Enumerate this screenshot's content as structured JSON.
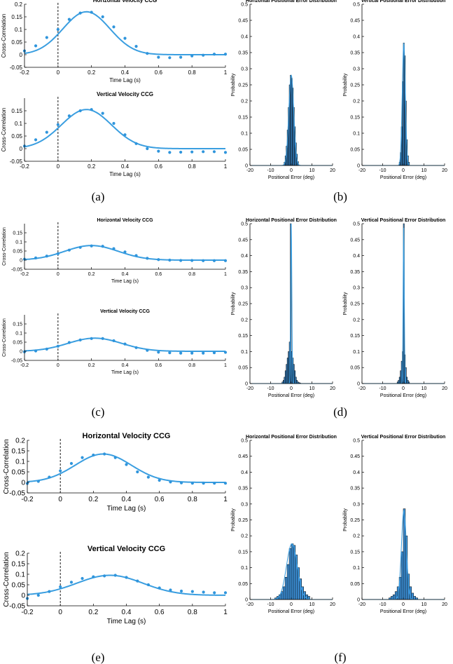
{
  "colors": {
    "fit": "#3a9ee0",
    "dots": "#2f95dc",
    "bar_fill": "#3c8fd6",
    "bar_edge": "#000000",
    "axis": "#000000"
  },
  "panel_labels": [
    "(a)",
    "(b)",
    "(c)",
    "(d)",
    "(e)",
    "(f)"
  ],
  "chart_data": [
    {
      "id": "a_h",
      "type": "line+scatter",
      "title": "Horizontal Velocity CCG",
      "xlabel": "Time Lag (s)",
      "ylabel": "Cross-Correlation",
      "xlim": [
        -0.2,
        1
      ],
      "ylim": [
        -0.05,
        0.2
      ],
      "xticks": [
        "-0.2",
        "0",
        "0.2",
        "0.4",
        "0.6",
        "0.8",
        "1"
      ],
      "yticks": [
        "-0.05",
        "0",
        "0.05",
        "0.1",
        "0.15",
        "0.2"
      ],
      "fit": {
        "amplitude": 0.17,
        "center": 0.17,
        "sigma": 0.14,
        "offset": 0.0
      },
      "points": {
        "x": [
          -0.2,
          -0.133,
          -0.067,
          0,
          0.067,
          0.133,
          0.2,
          0.267,
          0.333,
          0.4,
          0.467,
          0.533,
          0.6,
          0.667,
          0.733,
          0.8,
          0.867,
          0.933,
          1.0
        ],
        "y": [
          0.015,
          0.035,
          0.068,
          0.1,
          0.14,
          0.165,
          0.168,
          0.15,
          0.11,
          0.065,
          0.033,
          0.005,
          -0.01,
          -0.012,
          -0.01,
          -0.005,
          -0.002,
          0.002,
          0.002
        ]
      }
    },
    {
      "id": "a_v",
      "type": "line+scatter",
      "title": "Vertical Velocity CCG",
      "xlabel": "Time Lag (s)",
      "ylabel": "Cross-Correlation",
      "xlim": [
        -0.2,
        1
      ],
      "ylim": [
        -0.05,
        0.2
      ],
      "xticks": [
        "-0.2",
        "0",
        "0.2",
        "0.4",
        "0.6",
        "0.8",
        "1"
      ],
      "yticks": [
        "-0.05",
        "0",
        "0.05",
        "0.1",
        "0.15"
      ],
      "fit": {
        "amplitude": 0.155,
        "center": 0.17,
        "sigma": 0.15,
        "offset": 0.0
      },
      "points": {
        "x": [
          -0.2,
          -0.133,
          -0.067,
          0,
          0.067,
          0.133,
          0.2,
          0.267,
          0.333,
          0.4,
          0.467,
          0.533,
          0.6,
          0.667,
          0.733,
          0.8,
          0.867,
          0.933,
          1.0
        ],
        "y": [
          0.01,
          0.035,
          0.065,
          0.095,
          0.13,
          0.15,
          0.155,
          0.14,
          0.1,
          0.055,
          0.02,
          0.0,
          -0.01,
          -0.015,
          -0.014,
          -0.013,
          -0.012,
          -0.012,
          -0.015
        ]
      }
    },
    {
      "id": "b_h",
      "type": "histogram",
      "title": "Horizontal Positional Error Distribution",
      "xlabel": "Positional Error (deg)",
      "ylabel": "Probability",
      "xlim": [
        -20,
        20
      ],
      "ylim": [
        0,
        0.5
      ],
      "xticks": [
        "-20",
        "-10",
        "0",
        "10",
        "20"
      ],
      "yticks": [
        "0",
        "0.05",
        "0.1",
        "0.15",
        "0.2",
        "0.25",
        "0.3",
        "0.35",
        "0.4",
        "0.45",
        "0.5"
      ],
      "bins": {
        "start": -3.5,
        "width": 0.5,
        "values": [
          0.01,
          0.03,
          0.06,
          0.11,
          0.18,
          0.25,
          0.28,
          0.27,
          0.24,
          0.18,
          0.12,
          0.07,
          0.035,
          0.012
        ]
      },
      "fit": {
        "amplitude": 0.28,
        "center": 0.0,
        "sigma": 1.2
      }
    },
    {
      "id": "b_v",
      "type": "histogram",
      "title": "Vertical Positional Error Distribution",
      "xlabel": "Positional Error (deg)",
      "ylabel": "Probability",
      "xlim": [
        -20,
        20
      ],
      "ylim": [
        0,
        0.5
      ],
      "xticks": [
        "-20",
        "-10",
        "0",
        "10",
        "20"
      ],
      "yticks": [
        "0",
        "0.05",
        "0.1",
        "0.15",
        "0.2",
        "0.25",
        "0.3",
        "0.35",
        "0.4",
        "0.45",
        "0.5"
      ],
      "bins": {
        "start": -2.0,
        "width": 0.5,
        "values": [
          0.01,
          0.04,
          0.12,
          0.26,
          0.38,
          0.34,
          0.2,
          0.08,
          0.03,
          0.01
        ]
      },
      "fit": {
        "amplitude": 0.38,
        "center": 0.25,
        "sigma": 0.75
      }
    },
    {
      "id": "c_h",
      "type": "line+scatter",
      "title": "Horizontal Velocity CCG",
      "xlabel": "Time Lag (s)",
      "ylabel": "Cross-Correlation",
      "xlim": [
        -0.2,
        1
      ],
      "ylim": [
        -0.05,
        0.2
      ],
      "xticks": [
        "-0.2",
        "0",
        "0.2",
        "0.4",
        "0.6",
        "0.8",
        "1"
      ],
      "yticks": [
        "-0.05",
        "0",
        "0.05",
        "0.1",
        "0.15"
      ],
      "fit": {
        "amplitude": 0.08,
        "center": 0.2,
        "sigma": 0.16,
        "offset": 0.0
      },
      "points": {
        "x": [
          -0.2,
          -0.133,
          -0.067,
          0,
          0.067,
          0.133,
          0.2,
          0.267,
          0.333,
          0.4,
          0.467,
          0.533,
          0.6,
          0.667,
          0.733,
          0.8,
          0.867,
          0.933,
          1.0
        ],
        "y": [
          0.005,
          0.012,
          0.022,
          0.035,
          0.055,
          0.07,
          0.078,
          0.076,
          0.063,
          0.045,
          0.025,
          0.01,
          0.003,
          0.0,
          -0.002,
          -0.002,
          -0.003,
          -0.003,
          -0.003
        ]
      }
    },
    {
      "id": "c_v",
      "type": "line+scatter",
      "title": "Vertical Velocity CCG",
      "xlabel": "Time Lag (s)",
      "ylabel": "Cross-Correlation",
      "xlim": [
        -0.2,
        1
      ],
      "ylim": [
        -0.05,
        0.2
      ],
      "xticks": [
        "-0.2",
        "0",
        "0.2",
        "0.4",
        "0.6",
        "0.8",
        "1"
      ],
      "yticks": [
        "-0.05",
        "0",
        "0.05",
        "0.1",
        "0.15"
      ],
      "fit": {
        "amplitude": 0.072,
        "center": 0.22,
        "sigma": 0.16,
        "offset": 0.0
      },
      "points": {
        "x": [
          -0.2,
          -0.133,
          -0.067,
          0,
          0.067,
          0.133,
          0.2,
          0.267,
          0.333,
          0.4,
          0.467,
          0.533,
          0.6,
          0.667,
          0.733,
          0.8,
          0.867,
          0.933,
          1.0
        ],
        "y": [
          -0.003,
          0.002,
          0.012,
          0.028,
          0.048,
          0.062,
          0.07,
          0.07,
          0.058,
          0.04,
          0.02,
          0.005,
          -0.005,
          -0.008,
          -0.01,
          -0.01,
          -0.01,
          -0.008,
          -0.006
        ]
      }
    },
    {
      "id": "d_h",
      "type": "histogram",
      "title": "Horizontal Positional Error Distribution",
      "xlabel": "Positional Error (deg)",
      "ylabel": "Probability",
      "xlim": [
        -20,
        20
      ],
      "ylim": [
        0,
        0.5
      ],
      "xticks": [
        "-20",
        "-10",
        "0",
        "10",
        "20"
      ],
      "yticks": [
        "0",
        "0.05",
        "0.1",
        "0.15",
        "0.2",
        "0.25",
        "0.3",
        "0.35",
        "0.4",
        "0.45",
        "0.5"
      ],
      "bins": {
        "start": -4.5,
        "width": 0.5,
        "values": [
          0.005,
          0.01,
          0.02,
          0.04,
          0.06,
          0.08,
          0.1,
          0.13,
          0.5,
          0.1,
          0.08,
          0.06,
          0.04,
          0.02,
          0.01,
          0.005,
          0.003,
          0.002
        ]
      },
      "fit": {
        "amplitude": 0.5,
        "center": 0.0,
        "sigma": 0.28
      }
    },
    {
      "id": "d_v",
      "type": "histogram",
      "title": "Vertical Positional Error Distribution",
      "xlabel": "Positional Error (deg)",
      "ylabel": "Probability",
      "xlim": [
        -20,
        20
      ],
      "ylim": [
        0,
        0.5
      ],
      "xticks": [
        "-20",
        "-10",
        "0",
        "10",
        "20"
      ],
      "yticks": [
        "0",
        "0.05",
        "0.1",
        "0.15",
        "0.2",
        "0.25",
        "0.3",
        "0.35",
        "0.4",
        "0.45",
        "0.5"
      ],
      "bins": {
        "start": -3.0,
        "width": 0.5,
        "values": [
          0.005,
          0.01,
          0.02,
          0.04,
          0.07,
          0.1,
          0.5,
          0.09,
          0.05,
          0.02,
          0.01,
          0.005
        ]
      },
      "fit": {
        "amplitude": 0.5,
        "center": 0.2,
        "sigma": 0.28
      }
    },
    {
      "id": "e_h",
      "type": "line+scatter",
      "title": "Horizontal Velocity CCG",
      "xlabel": "Time Lag (s)",
      "ylabel": "Cross-Correlation",
      "xlim": [
        -0.2,
        1
      ],
      "ylim": [
        -0.05,
        0.2
      ],
      "xticks": [
        "-0.2",
        "0",
        "0.2",
        "0.4",
        "0.6",
        "0.8",
        "1"
      ],
      "yticks": [
        "-0.05",
        "0",
        "0.05",
        "0.1",
        "0.15",
        "0.2"
      ],
      "fit": {
        "amplitude": 0.135,
        "center": 0.26,
        "sigma": 0.17,
        "offset": 0.0
      },
      "points": {
        "x": [
          -0.2,
          -0.133,
          -0.067,
          0,
          0.067,
          0.133,
          0.2,
          0.267,
          0.333,
          0.4,
          0.467,
          0.533,
          0.6,
          0.667,
          0.733,
          0.8,
          0.867,
          0.933,
          1.0
        ],
        "y": [
          -0.005,
          0.005,
          0.025,
          0.055,
          0.09,
          0.118,
          0.13,
          0.135,
          0.118,
          0.085,
          0.05,
          0.025,
          0.01,
          0.002,
          -0.002,
          -0.004,
          -0.004,
          -0.004,
          -0.004
        ]
      }
    },
    {
      "id": "e_v",
      "type": "line+scatter",
      "title": "Vertical Velocity CCG",
      "xlabel": "Time Lag (s)",
      "ylabel": "Cross-Correlation",
      "xlim": [
        -0.2,
        1
      ],
      "ylim": [
        -0.05,
        0.2
      ],
      "xticks": [
        "-0.2",
        "0",
        "0.2",
        "0.4",
        "0.6",
        "0.8",
        "1"
      ],
      "yticks": [
        "-0.05",
        "0",
        "0.05",
        "0.1",
        "0.15",
        "0.2"
      ],
      "fit": {
        "amplitude": 0.095,
        "center": 0.3,
        "sigma": 0.2,
        "offset": 0.0
      },
      "points": {
        "x": [
          -0.2,
          -0.133,
          -0.067,
          0,
          0.067,
          0.133,
          0.2,
          0.267,
          0.333,
          0.4,
          0.467,
          0.533,
          0.6,
          0.667,
          0.733,
          0.8,
          0.867,
          0.933,
          1.0
        ],
        "y": [
          -0.015,
          0.0,
          0.018,
          0.04,
          0.062,
          0.08,
          0.088,
          0.092,
          0.095,
          0.085,
          0.068,
          0.05,
          0.035,
          0.025,
          0.02,
          0.018,
          0.015,
          0.012,
          0.012
        ]
      }
    },
    {
      "id": "f_h",
      "type": "histogram",
      "title": "Horizontal Positional Error Distribution",
      "xlabel": "Positional Error (deg)",
      "ylabel": "Probability",
      "xlim": [
        -20,
        20
      ],
      "ylim": [
        0,
        0.5
      ],
      "xticks": [
        "-20",
        "-10",
        "0",
        "10",
        "20"
      ],
      "yticks": [
        "0",
        "0.05",
        "0.1",
        "0.15",
        "0.2",
        "0.25",
        "0.3",
        "0.35",
        "0.4",
        "0.45",
        "0.5"
      ],
      "bins": {
        "start": -8.0,
        "width": 1.0,
        "values": [
          0.005,
          0.01,
          0.015,
          0.025,
          0.04,
          0.07,
          0.11,
          0.16,
          0.175,
          0.17,
          0.14,
          0.1,
          0.065,
          0.04,
          0.025,
          0.015,
          0.01
        ]
      },
      "fit": {
        "amplitude": 0.175,
        "center": 0.3,
        "sigma": 2.6
      }
    },
    {
      "id": "f_v",
      "type": "histogram",
      "title": "Vertical Positional Error Distribution",
      "xlabel": "Positional Error (deg)",
      "ylabel": "Probability",
      "xlim": [
        -20,
        20
      ],
      "ylim": [
        0,
        0.5
      ],
      "xticks": [
        "-20",
        "-10",
        "0",
        "10",
        "20"
      ],
      "yticks": [
        "0",
        "0.05",
        "0.1",
        "0.15",
        "0.2",
        "0.25",
        "0.3",
        "0.35",
        "0.4",
        "0.45",
        "0.5"
      ],
      "bins": {
        "start": -7.0,
        "width": 1.0,
        "values": [
          0.005,
          0.01,
          0.015,
          0.025,
          0.04,
          0.07,
          0.15,
          0.285,
          0.2,
          0.08,
          0.04,
          0.02,
          0.01,
          0.005
        ]
      },
      "fit": {
        "amplitude": 0.28,
        "center": 0.3,
        "sigma": 1.2
      }
    }
  ]
}
